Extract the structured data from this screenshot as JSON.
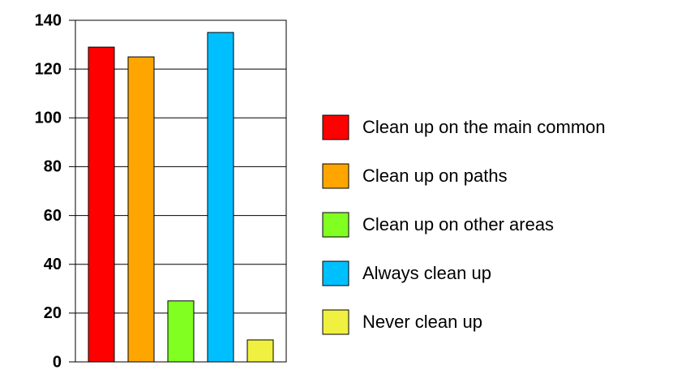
{
  "chart_data": {
    "type": "bar",
    "categories": [
      null
    ],
    "series": [
      {
        "name": "Clean up on the main common",
        "color": "#ff0000",
        "values": [
          129
        ]
      },
      {
        "name": "Clean up on paths",
        "color": "#ffa500",
        "values": [
          125
        ]
      },
      {
        "name": "Clean up on other areas",
        "color": "#80ff20",
        "values": [
          25
        ]
      },
      {
        "name": "Always clean up",
        "color": "#00bfff",
        "values": [
          135
        ]
      },
      {
        "name": "Never clean up",
        "color": "#f0f040",
        "values": [
          9
        ]
      }
    ],
    "ylim": [
      0,
      140
    ],
    "yticks": [
      0,
      20,
      40,
      60,
      80,
      100,
      120,
      140
    ],
    "grid": true,
    "legend": "right"
  }
}
